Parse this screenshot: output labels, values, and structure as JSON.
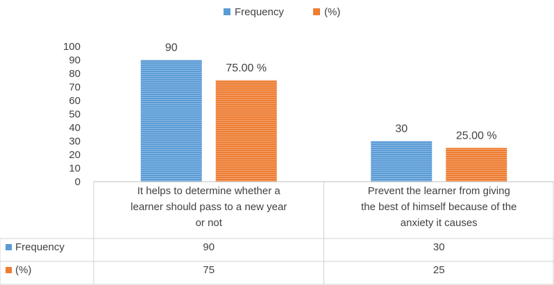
{
  "chart_data": {
    "type": "bar",
    "categories": [
      [
        "It helps to determine whether a",
        "learner should pass to a new year",
        "or not"
      ],
      [
        "Prevent the learner from giving",
        "the best of himself because of the",
        "anxiety it causes"
      ]
    ],
    "series": [
      {
        "name": "Frequency",
        "values": [
          90,
          30
        ],
        "color": "#5b9bd5",
        "data_labels": [
          "90",
          "30"
        ],
        "table_values": [
          "90",
          "30"
        ]
      },
      {
        "name": "(%)",
        "values": [
          75,
          25
        ],
        "color": "#ed7d31",
        "data_labels": [
          "75.00 %",
          "25.00 %"
        ],
        "table_values": [
          "75",
          "25"
        ]
      }
    ],
    "ylim": [
      0,
      100
    ],
    "yticks": [
      "0",
      "10",
      "20",
      "30",
      "40",
      "50",
      "60",
      "70",
      "80",
      "90",
      "100"
    ],
    "legend_position": "top",
    "grid": false,
    "data_table": true
  }
}
